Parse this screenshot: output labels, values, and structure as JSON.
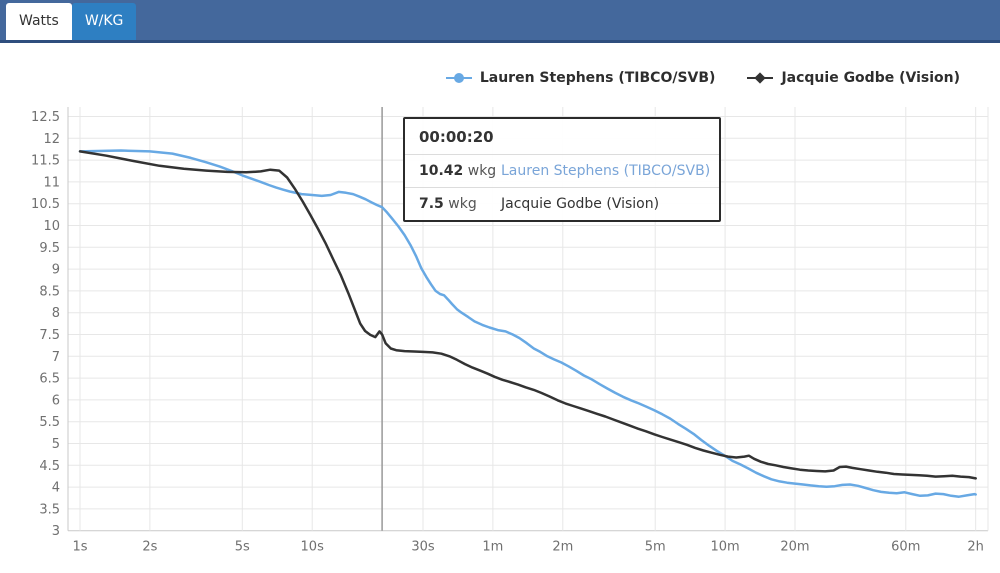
{
  "tabs": [
    {
      "label": "Watts",
      "active": false
    },
    {
      "label": "W/KG",
      "active": true
    }
  ],
  "topbar_colors": {
    "bar": "#44689c",
    "bar_border": "#2e4e7e",
    "active_tab": "#2e7fc2",
    "inactive_tab": "#ffffff"
  },
  "legend": [
    {
      "label": "Lauren Stephens (TIBCO/SVB)",
      "color": "#68a9e4",
      "marker": "circle"
    },
    {
      "label": "Jacquie Godbe (Vision)",
      "color": "#333333",
      "marker": "diamond"
    }
  ],
  "tooltip": {
    "time": "00:00:20",
    "rows": [
      {
        "value": "10.42",
        "unit": "wkg",
        "name": "Lauren Stephens (TIBCO/SVB)",
        "name_color": "#7aa5d8"
      },
      {
        "value": "7.5",
        "unit": "wkg",
        "name": "Jacquie Godbe (Vision)",
        "name_color": "#333333"
      }
    ]
  },
  "chart_data": {
    "type": "line",
    "x_scale": "log",
    "x_unit": "seconds",
    "ylim": [
      3,
      12.5
    ],
    "grid": true,
    "legend_position": "top-right",
    "crosshair_t": 20,
    "y_ticks": [
      3,
      3.5,
      4,
      4.5,
      5,
      5.5,
      6,
      6.5,
      7,
      7.5,
      8,
      8.5,
      9,
      9.5,
      10,
      10.5,
      11,
      11.5,
      12,
      12.5
    ],
    "x_ticks": [
      {
        "t": 1,
        "label": "1s"
      },
      {
        "t": 2,
        "label": "2s"
      },
      {
        "t": 5,
        "label": "5s"
      },
      {
        "t": 10,
        "label": "10s"
      },
      {
        "t": 30,
        "label": "30s"
      },
      {
        "t": 60,
        "label": "1m"
      },
      {
        "t": 120,
        "label": "2m"
      },
      {
        "t": 300,
        "label": "5m"
      },
      {
        "t": 600,
        "label": "10m"
      },
      {
        "t": 1200,
        "label": "20m"
      },
      {
        "t": 3600,
        "label": "60m"
      },
      {
        "t": 7200,
        "label": "2h"
      }
    ],
    "series": [
      {
        "name": "Lauren Stephens (TIBCO/SVB)",
        "color": "#68a9e4",
        "points": [
          [
            1,
            11.7
          ],
          [
            1.5,
            11.72
          ],
          [
            2,
            11.7
          ],
          [
            2.5,
            11.65
          ],
          [
            3,
            11.55
          ],
          [
            3.5,
            11.45
          ],
          [
            4,
            11.35
          ],
          [
            4.5,
            11.25
          ],
          [
            5,
            11.15
          ],
          [
            5.5,
            11.07
          ],
          [
            6,
            11.0
          ],
          [
            6.5,
            10.93
          ],
          [
            7,
            10.87
          ],
          [
            7.5,
            10.82
          ],
          [
            8,
            10.78
          ],
          [
            9,
            10.72
          ],
          [
            10,
            10.7
          ],
          [
            11,
            10.68
          ],
          [
            12,
            10.7
          ],
          [
            13,
            10.77
          ],
          [
            14,
            10.75
          ],
          [
            15,
            10.72
          ],
          [
            16,
            10.66
          ],
          [
            17,
            10.6
          ],
          [
            18,
            10.53
          ],
          [
            19,
            10.47
          ],
          [
            20,
            10.42
          ],
          [
            21,
            10.3
          ],
          [
            22,
            10.17
          ],
          [
            23.5,
            9.98
          ],
          [
            25,
            9.78
          ],
          [
            26.5,
            9.55
          ],
          [
            28,
            9.3
          ],
          [
            29.5,
            9.02
          ],
          [
            31,
            8.82
          ],
          [
            32.5,
            8.65
          ],
          [
            34,
            8.5
          ],
          [
            35.5,
            8.43
          ],
          [
            37,
            8.4
          ],
          [
            38.5,
            8.3
          ],
          [
            40,
            8.2
          ],
          [
            42,
            8.08
          ],
          [
            44,
            8.0
          ],
          [
            47,
            7.9
          ],
          [
            50,
            7.8
          ],
          [
            54,
            7.72
          ],
          [
            58,
            7.66
          ],
          [
            63,
            7.6
          ],
          [
            68,
            7.57
          ],
          [
            73,
            7.5
          ],
          [
            78,
            7.42
          ],
          [
            84,
            7.3
          ],
          [
            90,
            7.18
          ],
          [
            96,
            7.1
          ],
          [
            103,
            7.0
          ],
          [
            110,
            6.93
          ],
          [
            118,
            6.86
          ],
          [
            127,
            6.77
          ],
          [
            137,
            6.67
          ],
          [
            148,
            6.56
          ],
          [
            160,
            6.47
          ],
          [
            173,
            6.36
          ],
          [
            187,
            6.26
          ],
          [
            202,
            6.16
          ],
          [
            218,
            6.07
          ],
          [
            236,
            5.99
          ],
          [
            255,
            5.92
          ],
          [
            276,
            5.84
          ],
          [
            298,
            5.76
          ],
          [
            322,
            5.67
          ],
          [
            348,
            5.57
          ],
          [
            376,
            5.45
          ],
          [
            406,
            5.34
          ],
          [
            439,
            5.22
          ],
          [
            474,
            5.08
          ],
          [
            512,
            4.95
          ],
          [
            553,
            4.83
          ],
          [
            598,
            4.72
          ],
          [
            646,
            4.6
          ],
          [
            698,
            4.52
          ],
          [
            754,
            4.43
          ],
          [
            815,
            4.33
          ],
          [
            880,
            4.25
          ],
          [
            950,
            4.18
          ],
          [
            1030,
            4.13
          ],
          [
            1110,
            4.1
          ],
          [
            1200,
            4.08
          ],
          [
            1300,
            4.06
          ],
          [
            1400,
            4.04
          ],
          [
            1520,
            4.02
          ],
          [
            1640,
            4.01
          ],
          [
            1780,
            4.02
          ],
          [
            1920,
            4.05
          ],
          [
            2070,
            4.06
          ],
          [
            2240,
            4.03
          ],
          [
            2420,
            3.98
          ],
          [
            2610,
            3.93
          ],
          [
            2820,
            3.89
          ],
          [
            3050,
            3.87
          ],
          [
            3290,
            3.86
          ],
          [
            3560,
            3.88
          ],
          [
            3840,
            3.84
          ],
          [
            4150,
            3.8
          ],
          [
            4480,
            3.81
          ],
          [
            4840,
            3.85
          ],
          [
            5230,
            3.84
          ],
          [
            5650,
            3.8
          ],
          [
            6100,
            3.78
          ],
          [
            6590,
            3.81
          ],
          [
            7120,
            3.84
          ],
          [
            7200,
            3.83
          ]
        ]
      },
      {
        "name": "Jacquie Godbe (Vision)",
        "color": "#333333",
        "points": [
          [
            1,
            11.7
          ],
          [
            1.3,
            11.6
          ],
          [
            1.7,
            11.48
          ],
          [
            2.2,
            11.37
          ],
          [
            2.8,
            11.3
          ],
          [
            3.5,
            11.26
          ],
          [
            4.3,
            11.23
          ],
          [
            5.2,
            11.22
          ],
          [
            6,
            11.24
          ],
          [
            6.6,
            11.28
          ],
          [
            7.2,
            11.26
          ],
          [
            7.8,
            11.1
          ],
          [
            8.4,
            10.85
          ],
          [
            9.1,
            10.55
          ],
          [
            9.8,
            10.25
          ],
          [
            10.6,
            9.92
          ],
          [
            11.4,
            9.6
          ],
          [
            12.3,
            9.23
          ],
          [
            13.3,
            8.85
          ],
          [
            14.3,
            8.45
          ],
          [
            15.3,
            8.05
          ],
          [
            16.1,
            7.75
          ],
          [
            16.9,
            7.58
          ],
          [
            17.8,
            7.49
          ],
          [
            18.7,
            7.44
          ],
          [
            19.5,
            7.57
          ],
          [
            20,
            7.5
          ],
          [
            20.7,
            7.3
          ],
          [
            21.8,
            7.18
          ],
          [
            23,
            7.14
          ],
          [
            25,
            7.12
          ],
          [
            27.5,
            7.11
          ],
          [
            30,
            7.1
          ],
          [
            33,
            7.09
          ],
          [
            36,
            7.06
          ],
          [
            39,
            7.0
          ],
          [
            42,
            6.92
          ],
          [
            45.5,
            6.82
          ],
          [
            49,
            6.74
          ],
          [
            53,
            6.67
          ],
          [
            57,
            6.6
          ],
          [
            61,
            6.53
          ],
          [
            66,
            6.46
          ],
          [
            71,
            6.41
          ],
          [
            77,
            6.35
          ],
          [
            83,
            6.29
          ],
          [
            90,
            6.23
          ],
          [
            97,
            6.16
          ],
          [
            105,
            6.08
          ],
          [
            114,
            5.99
          ],
          [
            123,
            5.92
          ],
          [
            133,
            5.86
          ],
          [
            144,
            5.8
          ],
          [
            156,
            5.74
          ],
          [
            169,
            5.68
          ],
          [
            183,
            5.62
          ],
          [
            198,
            5.55
          ],
          [
            215,
            5.48
          ],
          [
            233,
            5.41
          ],
          [
            253,
            5.34
          ],
          [
            274,
            5.28
          ],
          [
            297,
            5.21
          ],
          [
            322,
            5.15
          ],
          [
            349,
            5.09
          ],
          [
            379,
            5.03
          ],
          [
            411,
            4.97
          ],
          [
            446,
            4.9
          ],
          [
            484,
            4.84
          ],
          [
            525,
            4.79
          ],
          [
            570,
            4.74
          ],
          [
            618,
            4.7
          ],
          [
            670,
            4.68
          ],
          [
            727,
            4.7
          ],
          [
            760,
            4.72
          ],
          [
            800,
            4.65
          ],
          [
            857,
            4.58
          ],
          [
            920,
            4.53
          ],
          [
            990,
            4.5
          ],
          [
            1070,
            4.46
          ],
          [
            1160,
            4.43
          ],
          [
            1260,
            4.4
          ],
          [
            1370,
            4.38
          ],
          [
            1490,
            4.37
          ],
          [
            1620,
            4.36
          ],
          [
            1760,
            4.38
          ],
          [
            1870,
            4.46
          ],
          [
            1990,
            4.47
          ],
          [
            2120,
            4.44
          ],
          [
            2300,
            4.41
          ],
          [
            2500,
            4.38
          ],
          [
            2720,
            4.35
          ],
          [
            2950,
            4.33
          ],
          [
            3200,
            4.3
          ],
          [
            3480,
            4.29
          ],
          [
            3780,
            4.28
          ],
          [
            4100,
            4.27
          ],
          [
            4450,
            4.26
          ],
          [
            4840,
            4.24
          ],
          [
            5260,
            4.25
          ],
          [
            5710,
            4.26
          ],
          [
            6200,
            4.24
          ],
          [
            6740,
            4.23
          ],
          [
            7200,
            4.2
          ]
        ]
      }
    ],
    "axis_style": {
      "label_color": "#707070",
      "grid_color": "#e7e7e7",
      "axis_line_color": "#c9c9c9",
      "crosshair_color": "#999999"
    }
  }
}
